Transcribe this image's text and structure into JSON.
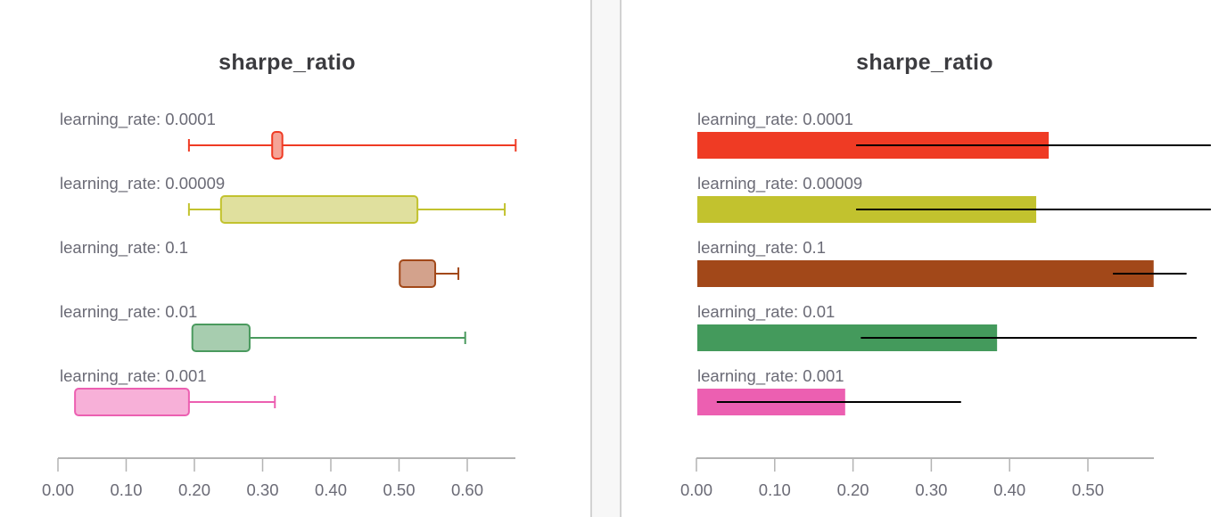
{
  "chart_data": [
    {
      "type": "boxplot",
      "title": "sharpe_ratio",
      "xlabel": "",
      "ylabel": "",
      "xlim": [
        0.0,
        0.67
      ],
      "xticks": [
        "0.00",
        "0.10",
        "0.20",
        "0.30",
        "0.40",
        "0.50",
        "0.60"
      ],
      "grid": false,
      "orientation": "horizontal",
      "series": [
        {
          "name": "learning_rate: 0.0001",
          "color": "#EF3B24",
          "fill": "#F5A497",
          "min": 0.192,
          "q1": 0.314,
          "q3": 0.329,
          "max": 0.671
        },
        {
          "name": "learning_rate: 0.00009",
          "color": "#C2C22E",
          "fill": "#E0E09E",
          "min": 0.192,
          "q1": 0.239,
          "q3": 0.527,
          "max": 0.655
        },
        {
          "name": "learning_rate: 0.1",
          "color": "#A24819",
          "fill": "#D3A28C",
          "min": 0.501,
          "q1": 0.501,
          "q3": 0.553,
          "max": 0.587
        },
        {
          "name": "learning_rate: 0.01",
          "color": "#4A9A5E",
          "fill": "#A7CDAF",
          "min": 0.197,
          "q1": 0.197,
          "q3": 0.281,
          "max": 0.597
        },
        {
          "name": "learning_rate: 0.001",
          "color": "#EC5FB1",
          "fill": "#F7B0D8",
          "min": 0.025,
          "q1": 0.025,
          "q3": 0.192,
          "max": 0.318
        }
      ]
    },
    {
      "type": "bar",
      "title": "sharpe_ratio",
      "xlabel": "",
      "ylabel": "",
      "xlim": [
        0.0,
        0.585
      ],
      "xticks": [
        "0.00",
        "0.10",
        "0.20",
        "0.30",
        "0.40",
        "0.50"
      ],
      "grid": false,
      "orientation": "horizontal",
      "categories": [
        "learning_rate: 0.0001",
        "learning_rate: 0.00009",
        "learning_rate: 0.1",
        "learning_rate: 0.01",
        "learning_rate: 0.001"
      ],
      "values": [
        0.45,
        0.434,
        0.584,
        0.384,
        0.19
      ],
      "error_low": [
        0.204,
        0.204,
        0.532,
        0.21,
        0.026
      ],
      "error_high": [
        0.657,
        0.657,
        0.626,
        0.639,
        0.338
      ],
      "colors": [
        "#EF3B24",
        "#C2C22E",
        "#A24819",
        "#449A5C",
        "#EC5FB1"
      ]
    }
  ],
  "panels": {
    "left": {
      "title": "sharpe_ratio"
    },
    "right": {
      "title": "sharpe_ratio"
    }
  }
}
